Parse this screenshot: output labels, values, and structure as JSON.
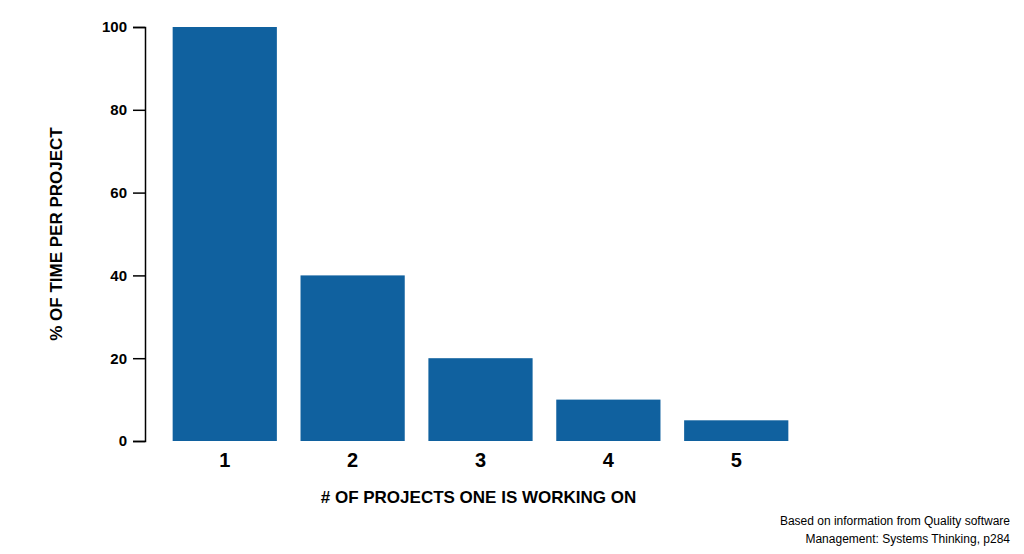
{
  "chart_data": {
    "type": "bar",
    "categories": [
      "1",
      "2",
      "3",
      "4",
      "5"
    ],
    "values": [
      100,
      40,
      20,
      10,
      5
    ],
    "color": "#10619f",
    "ylim": [
      0,
      100
    ],
    "yticks": [
      0,
      20,
      40,
      60,
      80,
      100
    ],
    "grid": false,
    "y_label": "% OF TIME PER PROJECT",
    "x_label": "# OF PROJECTS ONE IS WORKING ON",
    "annotations": [
      "Based on information from Quality software",
      "Management: Systems Thinking, p284"
    ]
  }
}
